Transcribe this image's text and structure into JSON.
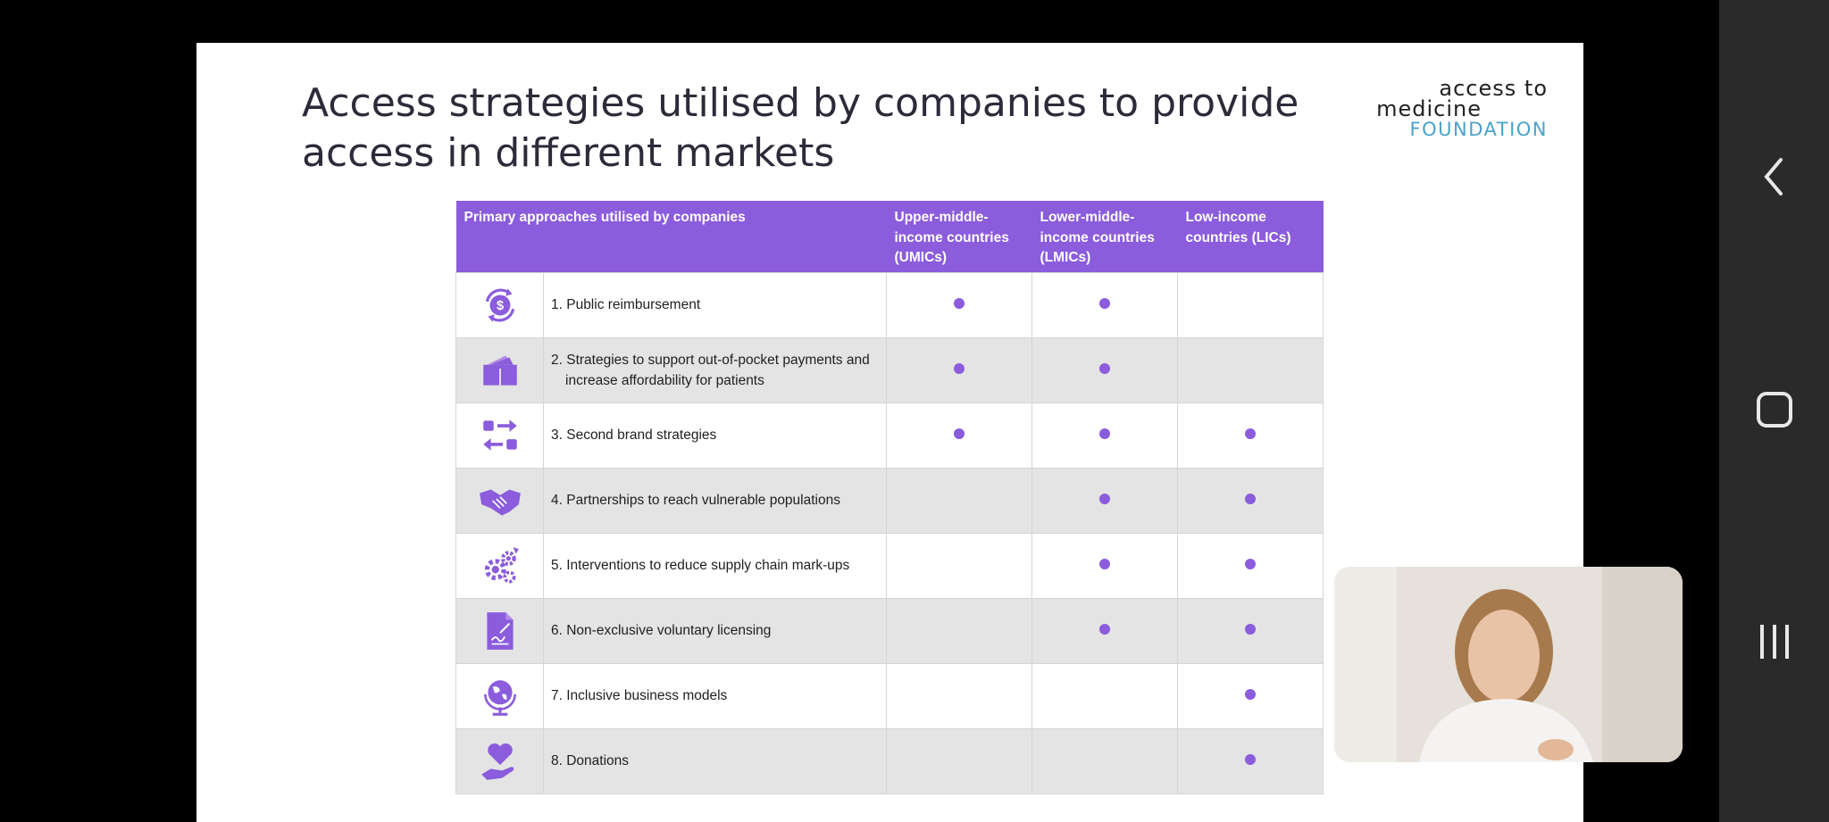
{
  "slide": {
    "title": "Access strategies utilised by companies to provide access in different markets",
    "logo": {
      "line1": "access to",
      "line2": "medicine",
      "line3": "FOUNDATION"
    }
  },
  "table": {
    "headers": [
      "Primary approaches utilised by companies",
      "Upper-middle-income countries (UMICs)",
      "Lower-middle-income countries (LMICs)",
      "Low-income countries (LICs)"
    ],
    "rows": [
      {
        "icon": "reimbursement-icon",
        "label": "1. Public reimbursement",
        "umic": true,
        "lmic": true,
        "lic": false
      },
      {
        "icon": "wallet-icon",
        "label": "2. Strategies to support out-of-pocket payments and increase affordability for patients",
        "umic": true,
        "lmic": true,
        "lic": false
      },
      {
        "icon": "exchange-icon",
        "label": "3. Second brand strategies",
        "umic": true,
        "lmic": true,
        "lic": true
      },
      {
        "icon": "handshake-icon",
        "label": "4. Partnerships to reach vulnerable populations",
        "umic": false,
        "lmic": true,
        "lic": true
      },
      {
        "icon": "gears-icon",
        "label": "5. Interventions to reduce supply chain mark-ups",
        "umic": false,
        "lmic": true,
        "lic": true
      },
      {
        "icon": "license-document-icon",
        "label": "6. Non-exclusive voluntary licensing",
        "umic": false,
        "lmic": true,
        "lic": true
      },
      {
        "icon": "globe-icon",
        "label": "7. Inclusive business models",
        "umic": false,
        "lmic": false,
        "lic": true
      },
      {
        "icon": "heart-hand-icon",
        "label": "8. Donations",
        "umic": false,
        "lmic": false,
        "lic": true
      }
    ]
  },
  "colors": {
    "accent": "#8b5cdc",
    "shade": "#e4e4e4",
    "logo_blue": "#4aa3c9"
  },
  "nav": {
    "back": "back-icon",
    "home": "home-icon",
    "recents": "recents-icon"
  }
}
